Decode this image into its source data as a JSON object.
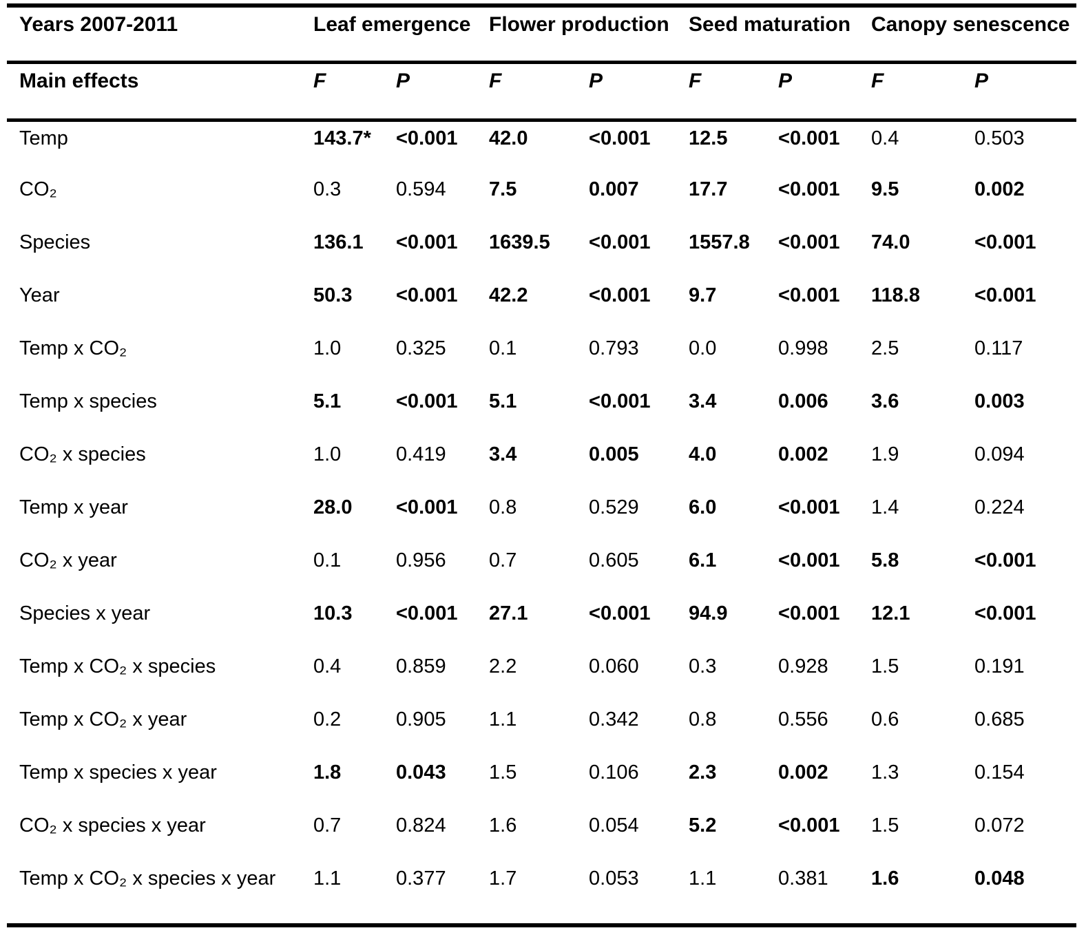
{
  "table": {
    "corner_header": "Years 2007-2011",
    "effects_header": "Main effects",
    "column_groups": [
      "Leaf emergence",
      "Flower production",
      "Seed maturation",
      "Canopy senescence"
    ],
    "stat_labels": [
      "F",
      "P"
    ],
    "rows": [
      {
        "label": "Temp",
        "cells": [
          {
            "v": "143.7*",
            "bold": true
          },
          {
            "v": "<0.001",
            "bold": true
          },
          {
            "v": "42.0",
            "bold": true
          },
          {
            "v": "<0.001",
            "bold": true
          },
          {
            "v": "12.5",
            "bold": true
          },
          {
            "v": "<0.001",
            "bold": true
          },
          {
            "v": "0.4",
            "bold": false
          },
          {
            "v": "0.503",
            "bold": false
          }
        ]
      },
      {
        "label": "CO₂",
        "cells": [
          {
            "v": "0.3",
            "bold": false
          },
          {
            "v": "0.594",
            "bold": false
          },
          {
            "v": "7.5",
            "bold": true
          },
          {
            "v": "0.007",
            "bold": true
          },
          {
            "v": "17.7",
            "bold": true
          },
          {
            "v": "<0.001",
            "bold": true
          },
          {
            "v": "9.5",
            "bold": true
          },
          {
            "v": "0.002",
            "bold": true
          }
        ]
      },
      {
        "label": "Species",
        "cells": [
          {
            "v": "136.1",
            "bold": true
          },
          {
            "v": "<0.001",
            "bold": true
          },
          {
            "v": "1639.5",
            "bold": true
          },
          {
            "v": "<0.001",
            "bold": true
          },
          {
            "v": "1557.8",
            "bold": true
          },
          {
            "v": "<0.001",
            "bold": true
          },
          {
            "v": "74.0",
            "bold": true
          },
          {
            "v": "<0.001",
            "bold": true
          }
        ]
      },
      {
        "label": "Year",
        "cells": [
          {
            "v": "50.3",
            "bold": true
          },
          {
            "v": "<0.001",
            "bold": true
          },
          {
            "v": "42.2",
            "bold": true
          },
          {
            "v": "<0.001",
            "bold": true
          },
          {
            "v": "9.7",
            "bold": true
          },
          {
            "v": "<0.001",
            "bold": true
          },
          {
            "v": "118.8",
            "bold": true
          },
          {
            "v": "<0.001",
            "bold": true
          }
        ]
      },
      {
        "label": "Temp x CO₂",
        "cells": [
          {
            "v": "1.0",
            "bold": false
          },
          {
            "v": "0.325",
            "bold": false
          },
          {
            "v": "0.1",
            "bold": false
          },
          {
            "v": "0.793",
            "bold": false
          },
          {
            "v": "0.0",
            "bold": false
          },
          {
            "v": "0.998",
            "bold": false
          },
          {
            "v": "2.5",
            "bold": false
          },
          {
            "v": "0.117",
            "bold": false
          }
        ]
      },
      {
        "label": "Temp x species",
        "cells": [
          {
            "v": "5.1",
            "bold": true
          },
          {
            "v": "<0.001",
            "bold": true
          },
          {
            "v": "5.1",
            "bold": true
          },
          {
            "v": "<0.001",
            "bold": true
          },
          {
            "v": "3.4",
            "bold": true
          },
          {
            "v": "0.006",
            "bold": true
          },
          {
            "v": "3.6",
            "bold": true
          },
          {
            "v": "0.003",
            "bold": true
          }
        ]
      },
      {
        "label": "CO₂ x species",
        "cells": [
          {
            "v": "1.0",
            "bold": false
          },
          {
            "v": "0.419",
            "bold": false
          },
          {
            "v": "3.4",
            "bold": true
          },
          {
            "v": "0.005",
            "bold": true
          },
          {
            "v": "4.0",
            "bold": true
          },
          {
            "v": "0.002",
            "bold": true
          },
          {
            "v": "1.9",
            "bold": false
          },
          {
            "v": "0.094",
            "bold": false
          }
        ]
      },
      {
        "label": "Temp x year",
        "cells": [
          {
            "v": "28.0",
            "bold": true
          },
          {
            "v": "<0.001",
            "bold": true
          },
          {
            "v": "0.8",
            "bold": false
          },
          {
            "v": "0.529",
            "bold": false
          },
          {
            "v": "6.0",
            "bold": true
          },
          {
            "v": "<0.001",
            "bold": true
          },
          {
            "v": "1.4",
            "bold": false
          },
          {
            "v": "0.224",
            "bold": false
          }
        ]
      },
      {
        "label": "CO₂ x year",
        "cells": [
          {
            "v": "0.1",
            "bold": false
          },
          {
            "v": "0.956",
            "bold": false
          },
          {
            "v": "0.7",
            "bold": false
          },
          {
            "v": "0.605",
            "bold": false
          },
          {
            "v": "6.1",
            "bold": true
          },
          {
            "v": "<0.001",
            "bold": true
          },
          {
            "v": "5.8",
            "bold": true
          },
          {
            "v": "<0.001",
            "bold": true
          }
        ]
      },
      {
        "label": "Species x year",
        "cells": [
          {
            "v": "10.3",
            "bold": true
          },
          {
            "v": "<0.001",
            "bold": true
          },
          {
            "v": "27.1",
            "bold": true
          },
          {
            "v": "<0.001",
            "bold": true
          },
          {
            "v": "94.9",
            "bold": true
          },
          {
            "v": "<0.001",
            "bold": true
          },
          {
            "v": "12.1",
            "bold": true
          },
          {
            "v": "<0.001",
            "bold": true
          }
        ]
      },
      {
        "label": "Temp x CO₂ x species",
        "cells": [
          {
            "v": "0.4",
            "bold": false
          },
          {
            "v": "0.859",
            "bold": false
          },
          {
            "v": "2.2",
            "bold": false
          },
          {
            "v": "0.060",
            "bold": false
          },
          {
            "v": "0.3",
            "bold": false
          },
          {
            "v": "0.928",
            "bold": false
          },
          {
            "v": "1.5",
            "bold": false
          },
          {
            "v": "0.191",
            "bold": false
          }
        ]
      },
      {
        "label": "Temp x CO₂ x year",
        "cells": [
          {
            "v": "0.2",
            "bold": false
          },
          {
            "v": "0.905",
            "bold": false
          },
          {
            "v": "1.1",
            "bold": false
          },
          {
            "v": "0.342",
            "bold": false
          },
          {
            "v": "0.8",
            "bold": false
          },
          {
            "v": "0.556",
            "bold": false
          },
          {
            "v": "0.6",
            "bold": false
          },
          {
            "v": "0.685",
            "bold": false
          }
        ]
      },
      {
        "label": "Temp x species x year",
        "cells": [
          {
            "v": "1.8",
            "bold": true
          },
          {
            "v": "0.043",
            "bold": true
          },
          {
            "v": "1.5",
            "bold": false
          },
          {
            "v": "0.106",
            "bold": false
          },
          {
            "v": "2.3",
            "bold": true
          },
          {
            "v": "0.002",
            "bold": true
          },
          {
            "v": "1.3",
            "bold": false
          },
          {
            "v": "0.154",
            "bold": false
          }
        ]
      },
      {
        "label": "CO₂ x species x year",
        "cells": [
          {
            "v": "0.7",
            "bold": false
          },
          {
            "v": "0.824",
            "bold": false
          },
          {
            "v": "1.6",
            "bold": false
          },
          {
            "v": "0.054",
            "bold": false
          },
          {
            "v": "5.2",
            "bold": true
          },
          {
            "v": "<0.001",
            "bold": true
          },
          {
            "v": "1.5",
            "bold": false
          },
          {
            "v": "0.072",
            "bold": false
          }
        ]
      },
      {
        "label": "Temp x CO₂ x species x year",
        "cells": [
          {
            "v": "1.1",
            "bold": false
          },
          {
            "v": "0.377",
            "bold": false
          },
          {
            "v": "1.7",
            "bold": false
          },
          {
            "v": "0.053",
            "bold": false
          },
          {
            "v": "1.1",
            "bold": false
          },
          {
            "v": "0.381",
            "bold": false
          },
          {
            "v": "1.6",
            "bold": true
          },
          {
            "v": "0.048",
            "bold": true
          }
        ]
      }
    ]
  }
}
